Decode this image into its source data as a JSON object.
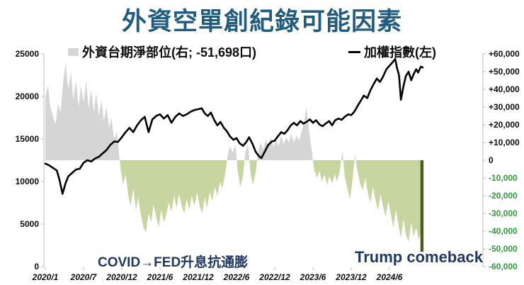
{
  "title": "外資空單創紀錄可能因素",
  "legend": {
    "net_position_label": "外資台期淨部位(右; -51,698口)",
    "index_label": "加權指數(左)",
    "index_marker": "—"
  },
  "annotations": {
    "covid": "COVID→FED升息抗通膨",
    "trump": "Trump comeback"
  },
  "colors": {
    "title": "#1f5c7f",
    "annotation": "#203864",
    "area_positive": "#d5d5d5",
    "area_negative": "#c7d6a0",
    "current_bar": "#4d5a22",
    "index_line": "#000000",
    "axis": "#c8c8c8",
    "tick_label": "#0d0d0d",
    "negative_tick_label": "#319a38"
  },
  "chart_data": {
    "type": "area+line combo",
    "title": "外資空單創紀錄可能因素",
    "x_axis": {
      "tick_labels": [
        "2020/1",
        "2020/7",
        "2020/12",
        "2021/6",
        "2021/12",
        "2022/6",
        "2022/12",
        "2023/6",
        "2023/12",
        "2024/6"
      ]
    },
    "left_axis": {
      "label": "加權指數(左)",
      "min": 0,
      "max": 25000,
      "tick_labels": [
        "25000",
        "20000",
        "15000",
        "10000",
        "5000",
        "0"
      ]
    },
    "right_axis": {
      "label": "外資台期淨部位(右)",
      "min": -60000,
      "max": 60000,
      "tick_labels": [
        "+60,000",
        "+50,000",
        "+40,000",
        "+30,000",
        "+20,000",
        "+10,000",
        "0",
        "-10,000",
        "-20,000",
        "-30,000",
        "-40,000",
        "-50,000",
        "-60,000"
      ]
    },
    "series": [
      {
        "name": "外資台期淨部位",
        "axis": "right",
        "kind": "area",
        "unit": "口",
        "current_value": -51698,
        "current_point_x": 9.85,
        "points": [
          [
            0.0,
            36000
          ],
          [
            0.07,
            42000
          ],
          [
            0.13,
            30000
          ],
          [
            0.2,
            25000
          ],
          [
            0.27,
            20000
          ],
          [
            0.33,
            32000
          ],
          [
            0.4,
            27000
          ],
          [
            0.47,
            45000
          ],
          [
            0.53,
            55000
          ],
          [
            0.6,
            40000
          ],
          [
            0.67,
            50000
          ],
          [
            0.73,
            34000
          ],
          [
            0.8,
            45000
          ],
          [
            0.87,
            30000
          ],
          [
            0.93,
            42000
          ],
          [
            1.0,
            33000
          ],
          [
            1.07,
            45000
          ],
          [
            1.13,
            29000
          ],
          [
            1.2,
            40000
          ],
          [
            1.27,
            27000
          ],
          [
            1.33,
            38000
          ],
          [
            1.4,
            25000
          ],
          [
            1.47,
            34000
          ],
          [
            1.53,
            22000
          ],
          [
            1.6,
            30000
          ],
          [
            1.67,
            18000
          ],
          [
            1.73,
            24000
          ],
          [
            1.8,
            12000
          ],
          [
            1.87,
            16000
          ],
          [
            1.93,
            3000
          ],
          [
            1.97,
            -5000
          ],
          [
            2.03,
            -14000
          ],
          [
            2.1,
            -8000
          ],
          [
            2.17,
            -20000
          ],
          [
            2.23,
            -26000
          ],
          [
            2.3,
            -16000
          ],
          [
            2.37,
            -28000
          ],
          [
            2.43,
            -21000
          ],
          [
            2.5,
            -31000
          ],
          [
            2.57,
            -38000
          ],
          [
            2.63,
            -41000
          ],
          [
            2.7,
            -30000
          ],
          [
            2.77,
            -35000
          ],
          [
            2.83,
            -25000
          ],
          [
            2.9,
            -32000
          ],
          [
            2.97,
            -38000
          ],
          [
            3.03,
            -28000
          ],
          [
            3.1,
            -35000
          ],
          [
            3.17,
            -30000
          ],
          [
            3.23,
            -24000
          ],
          [
            3.3,
            -29000
          ],
          [
            3.37,
            -20000
          ],
          [
            3.43,
            -27000
          ],
          [
            3.5,
            -19000
          ],
          [
            3.57,
            -26000
          ],
          [
            3.63,
            -30000
          ],
          [
            3.7,
            -22000
          ],
          [
            3.77,
            -28000
          ],
          [
            3.83,
            -20000
          ],
          [
            3.9,
            -26000
          ],
          [
            3.97,
            -18000
          ],
          [
            4.03,
            -25000
          ],
          [
            4.1,
            -30000
          ],
          [
            4.17,
            -21000
          ],
          [
            4.23,
            -27000
          ],
          [
            4.3,
            -18000
          ],
          [
            4.37,
            -23000
          ],
          [
            4.43,
            -15000
          ],
          [
            4.5,
            -20000
          ],
          [
            4.57,
            -12000
          ],
          [
            4.63,
            -16000
          ],
          [
            4.7,
            -8000
          ],
          [
            4.77,
            3000
          ],
          [
            4.83,
            8000
          ],
          [
            4.9,
            4000
          ],
          [
            4.97,
            9000
          ],
          [
            5.03,
            -6000
          ],
          [
            5.1,
            -15000
          ],
          [
            5.17,
            -9000
          ],
          [
            5.23,
            4000
          ],
          [
            5.3,
            9000
          ],
          [
            5.37,
            -8000
          ],
          [
            5.43,
            -14000
          ],
          [
            5.5,
            -7000
          ],
          [
            5.57,
            5000
          ],
          [
            5.63,
            10000
          ],
          [
            5.7,
            6000
          ],
          [
            5.77,
            12000
          ],
          [
            5.83,
            8000
          ],
          [
            5.9,
            13000
          ],
          [
            5.97,
            7000
          ],
          [
            6.03,
            12000
          ],
          [
            6.1,
            8000
          ],
          [
            6.17,
            14000
          ],
          [
            6.23,
            9000
          ],
          [
            6.3,
            13000
          ],
          [
            6.37,
            10000
          ],
          [
            6.43,
            15000
          ],
          [
            6.5,
            10000
          ],
          [
            6.57,
            14000
          ],
          [
            6.63,
            11000
          ],
          [
            6.7,
            16000
          ],
          [
            6.77,
            22000
          ],
          [
            6.83,
            30000
          ],
          [
            6.9,
            16000
          ],
          [
            6.97,
            5000
          ],
          [
            7.03,
            -5000
          ],
          [
            7.1,
            -10000
          ],
          [
            7.17,
            -6000
          ],
          [
            7.23,
            -12000
          ],
          [
            7.3,
            -8000
          ],
          [
            7.37,
            -14000
          ],
          [
            7.43,
            -9000
          ],
          [
            7.5,
            -13000
          ],
          [
            7.57,
            -8000
          ],
          [
            7.63,
            -12000
          ],
          [
            7.7,
            -6000
          ],
          [
            7.77,
            5000
          ],
          [
            7.83,
            -9000
          ],
          [
            7.9,
            -16000
          ],
          [
            7.97,
            -22000
          ],
          [
            8.03,
            -12000
          ],
          [
            8.1,
            3000
          ],
          [
            8.17,
            -7000
          ],
          [
            8.23,
            -13000
          ],
          [
            8.3,
            -17000
          ],
          [
            8.37,
            -10000
          ],
          [
            8.43,
            -18000
          ],
          [
            8.5,
            -24000
          ],
          [
            8.57,
            -15000
          ],
          [
            8.63,
            -22000
          ],
          [
            8.7,
            -28000
          ],
          [
            8.77,
            -19000
          ],
          [
            8.83,
            -26000
          ],
          [
            8.9,
            -32000
          ],
          [
            8.97,
            -23000
          ],
          [
            9.03,
            -30000
          ],
          [
            9.1,
            -38000
          ],
          [
            9.17,
            -28000
          ],
          [
            9.23,
            -36000
          ],
          [
            9.3,
            -44000
          ],
          [
            9.37,
            -33000
          ],
          [
            9.43,
            -42000
          ],
          [
            9.5,
            -46000
          ],
          [
            9.57,
            -35000
          ],
          [
            9.63,
            -43000
          ],
          [
            9.7,
            -38000
          ],
          [
            9.77,
            -45000
          ],
          [
            9.82,
            -40000
          ]
        ]
      },
      {
        "name": "加權指數",
        "axis": "left",
        "kind": "line",
        "points": [
          [
            0.0,
            12100
          ],
          [
            0.1,
            11900
          ],
          [
            0.2,
            11600
          ],
          [
            0.3,
            11300
          ],
          [
            0.37,
            10200
          ],
          [
            0.45,
            8550
          ],
          [
            0.53,
            9800
          ],
          [
            0.6,
            10600
          ],
          [
            0.7,
            11000
          ],
          [
            0.8,
            11400
          ],
          [
            0.9,
            11500
          ],
          [
            1.0,
            12200
          ],
          [
            1.1,
            12500
          ],
          [
            1.2,
            12350
          ],
          [
            1.3,
            12700
          ],
          [
            1.4,
            12900
          ],
          [
            1.5,
            13300
          ],
          [
            1.6,
            13700
          ],
          [
            1.7,
            14300
          ],
          [
            1.8,
            14700
          ],
          [
            1.9,
            14650
          ],
          [
            2.0,
            15200
          ],
          [
            2.1,
            15800
          ],
          [
            2.2,
            16300
          ],
          [
            2.3,
            15800
          ],
          [
            2.4,
            16600
          ],
          [
            2.5,
            17200
          ],
          [
            2.6,
            17600
          ],
          [
            2.7,
            15800
          ],
          [
            2.8,
            17300
          ],
          [
            2.9,
            17700
          ],
          [
            3.0,
            17900
          ],
          [
            3.1,
            17400
          ],
          [
            3.2,
            17800
          ],
          [
            3.3,
            16900
          ],
          [
            3.4,
            17600
          ],
          [
            3.5,
            18000
          ],
          [
            3.6,
            17700
          ],
          [
            3.7,
            17900
          ],
          [
            3.8,
            18200
          ],
          [
            3.9,
            18400
          ],
          [
            4.0,
            18500
          ],
          [
            4.09,
            18600
          ],
          [
            4.17,
            18000
          ],
          [
            4.25,
            17700
          ],
          [
            4.33,
            18100
          ],
          [
            4.42,
            17200
          ],
          [
            4.5,
            16600
          ],
          [
            4.58,
            17000
          ],
          [
            4.67,
            16300
          ],
          [
            4.75,
            15900
          ],
          [
            4.83,
            15300
          ],
          [
            4.92,
            14900
          ],
          [
            5.0,
            15100
          ],
          [
            5.08,
            14500
          ],
          [
            5.17,
            14200
          ],
          [
            5.25,
            14600
          ],
          [
            5.33,
            15200
          ],
          [
            5.42,
            14400
          ],
          [
            5.5,
            13500
          ],
          [
            5.58,
            13000
          ],
          [
            5.65,
            12750
          ],
          [
            5.75,
            13600
          ],
          [
            5.83,
            14300
          ],
          [
            5.92,
            14700
          ],
          [
            6.0,
            14800
          ],
          [
            6.08,
            15300
          ],
          [
            6.17,
            15800
          ],
          [
            6.25,
            15600
          ],
          [
            6.33,
            16000
          ],
          [
            6.42,
            16600
          ],
          [
            6.5,
            16900
          ],
          [
            6.58,
            16600
          ],
          [
            6.67,
            17100
          ],
          [
            6.75,
            16800
          ],
          [
            6.83,
            17000
          ],
          [
            6.92,
            17300
          ],
          [
            7.0,
            16900
          ],
          [
            7.08,
            17200
          ],
          [
            7.17,
            16700
          ],
          [
            7.25,
            16500
          ],
          [
            7.33,
            16800
          ],
          [
            7.42,
            17100
          ],
          [
            7.5,
            16600
          ],
          [
            7.58,
            17200
          ],
          [
            7.67,
            17400
          ],
          [
            7.75,
            17250
          ],
          [
            7.83,
            17600
          ],
          [
            7.92,
            17900
          ],
          [
            8.0,
            17800
          ],
          [
            8.08,
            18200
          ],
          [
            8.17,
            18900
          ],
          [
            8.25,
            19500
          ],
          [
            8.33,
            20100
          ],
          [
            8.42,
            19800
          ],
          [
            8.5,
            20700
          ],
          [
            8.58,
            21400
          ],
          [
            8.67,
            22100
          ],
          [
            8.75,
            21700
          ],
          [
            8.83,
            22300
          ],
          [
            8.92,
            23200
          ],
          [
            9.0,
            23600
          ],
          [
            9.08,
            24000
          ],
          [
            9.15,
            24400
          ],
          [
            9.2,
            23300
          ],
          [
            9.25,
            22500
          ],
          [
            9.3,
            19600
          ],
          [
            9.37,
            21300
          ],
          [
            9.43,
            22400
          ],
          [
            9.5,
            22900
          ],
          [
            9.57,
            21900
          ],
          [
            9.63,
            22600
          ],
          [
            9.7,
            23200
          ],
          [
            9.75,
            22800
          ],
          [
            9.82,
            23500
          ],
          [
            9.87,
            23400
          ]
        ]
      }
    ]
  }
}
